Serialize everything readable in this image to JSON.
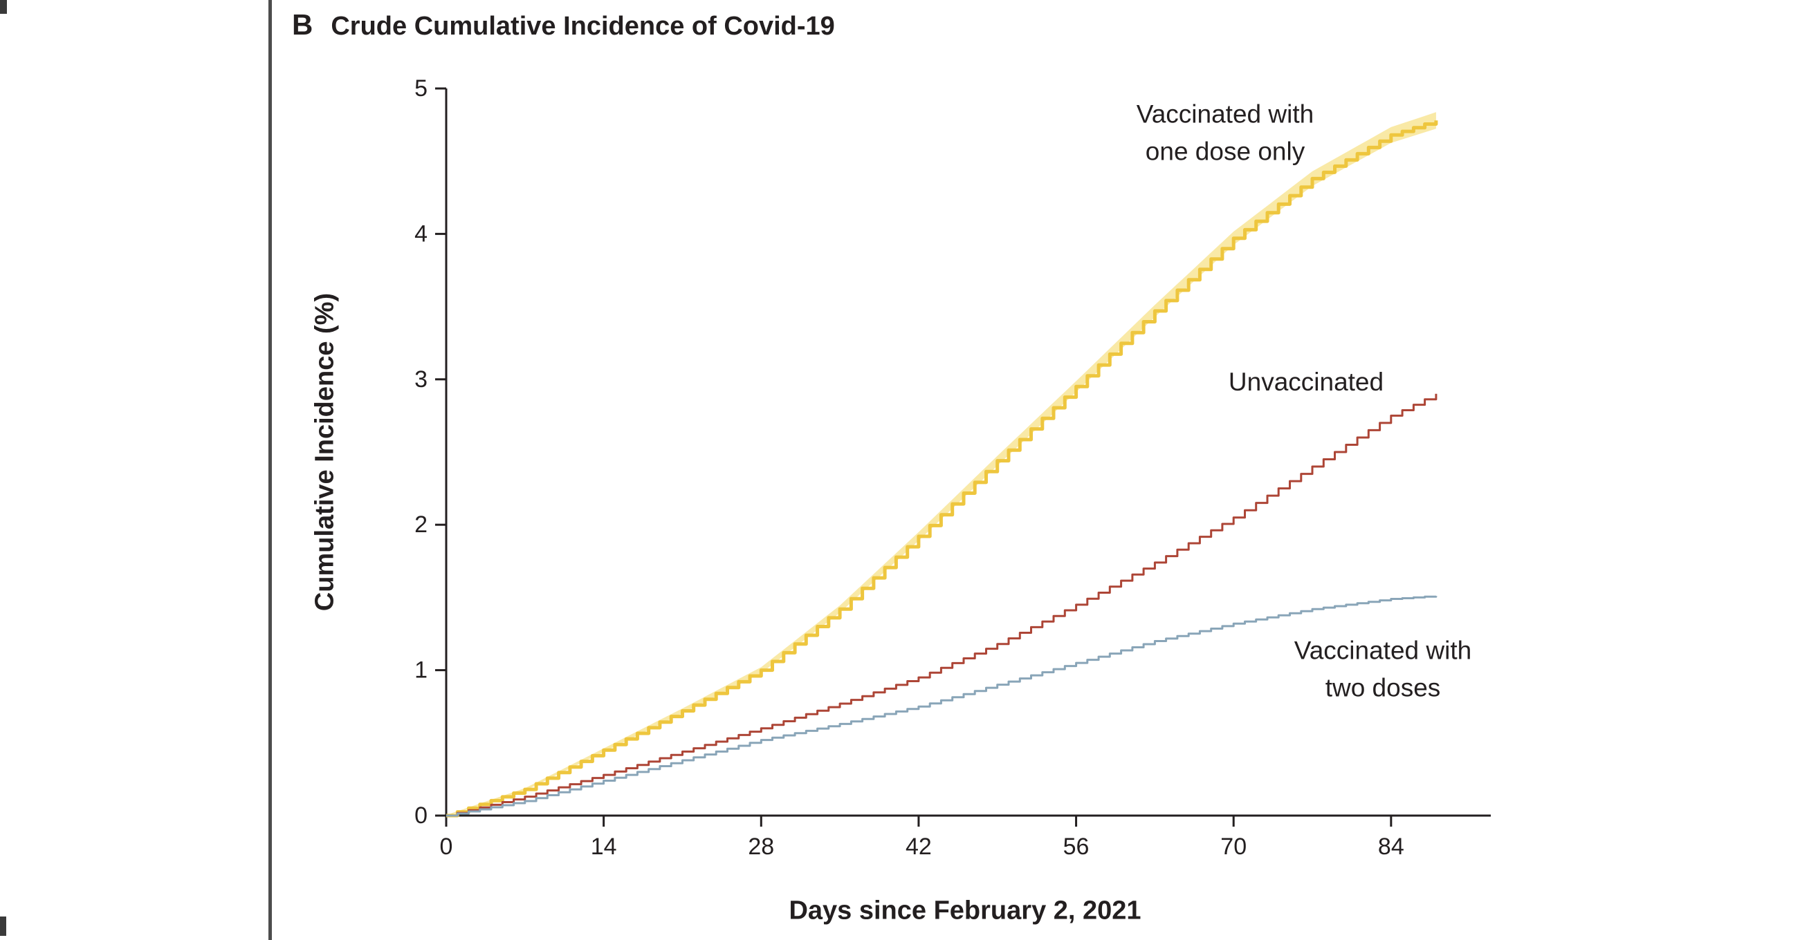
{
  "panel": {
    "letter": "B",
    "title": "Crude Cumulative Incidence of Covid-19"
  },
  "chart_data": {
    "type": "line",
    "subtype": "kaplan-meier-step",
    "title": "Crude Cumulative Incidence of Covid-19",
    "xlabel": "Days since February 2, 2021",
    "ylabel": "Cumulative Incidence (%)",
    "xlim": [
      0,
      93
    ],
    "ylim": [
      0,
      5
    ],
    "xticks": [
      0,
      14,
      28,
      42,
      56,
      70,
      84
    ],
    "yticks": [
      0,
      1,
      2,
      3,
      4,
      5
    ],
    "grid": false,
    "legend_position": "inline-annotations",
    "axis_color": "#231f20",
    "series": [
      {
        "name": "Vaccinated with one dose only",
        "annotation": "Vaccinated with\none dose only",
        "color": "#eec63e",
        "band_color": "#f9e9a6",
        "points": [
          [
            0,
            0
          ],
          [
            7,
            0.18
          ],
          [
            14,
            0.45
          ],
          [
            21,
            0.72
          ],
          [
            28,
            1.0
          ],
          [
            35,
            1.42
          ],
          [
            42,
            1.92
          ],
          [
            49,
            2.44
          ],
          [
            56,
            2.95
          ],
          [
            63,
            3.47
          ],
          [
            70,
            3.97
          ],
          [
            77,
            4.38
          ],
          [
            84,
            4.68
          ],
          [
            88,
            4.78
          ]
        ]
      },
      {
        "name": "Unvaccinated",
        "annotation": "Unvaccinated",
        "color": "#ad4536",
        "band_color": null,
        "points": [
          [
            0,
            0
          ],
          [
            7,
            0.13
          ],
          [
            14,
            0.28
          ],
          [
            21,
            0.44
          ],
          [
            28,
            0.6
          ],
          [
            35,
            0.77
          ],
          [
            42,
            0.95
          ],
          [
            49,
            1.18
          ],
          [
            56,
            1.45
          ],
          [
            63,
            1.74
          ],
          [
            70,
            2.05
          ],
          [
            77,
            2.4
          ],
          [
            84,
            2.75
          ],
          [
            88,
            2.9
          ]
        ]
      },
      {
        "name": "Vaccinated with two doses",
        "annotation": "Vaccinated with\ntwo doses",
        "color": "#89a5b8",
        "band_color": null,
        "points": [
          [
            0,
            0
          ],
          [
            7,
            0.1
          ],
          [
            14,
            0.24
          ],
          [
            21,
            0.38
          ],
          [
            28,
            0.52
          ],
          [
            35,
            0.63
          ],
          [
            42,
            0.75
          ],
          [
            49,
            0.9
          ],
          [
            56,
            1.05
          ],
          [
            63,
            1.2
          ],
          [
            70,
            1.32
          ],
          [
            77,
            1.42
          ],
          [
            84,
            1.49
          ],
          [
            88,
            1.51
          ]
        ]
      }
    ]
  }
}
